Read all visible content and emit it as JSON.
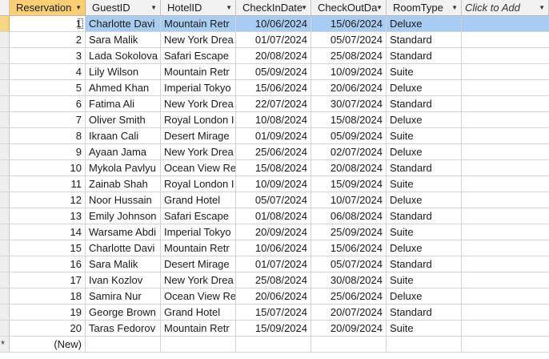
{
  "columns": [
    "Reservation",
    "GuestID",
    "HotelID",
    "CheckInDate",
    "CheckOutDate",
    "RoomType",
    "Click to Add"
  ],
  "column_display": [
    "Reservation",
    "GuestID",
    "HotelID",
    "CheckInDate",
    "CheckOutDa",
    "RoomType",
    "Click to Add"
  ],
  "dropdown_icon": "chevron-down-icon",
  "rows": [
    {
      "id": "1",
      "guest": "Charlotte Davi",
      "hotel": "Mountain Retr",
      "checkin": "10/06/2024",
      "checkout": "15/06/2024",
      "room": "Deluxe"
    },
    {
      "id": "2",
      "guest": "Sara Malik",
      "hotel": "New York Drea",
      "checkin": "01/07/2024",
      "checkout": "05/07/2024",
      "room": "Standard"
    },
    {
      "id": "3",
      "guest": "Lada Sokolova",
      "hotel": "Safari Escape",
      "checkin": "20/08/2024",
      "checkout": "25/08/2024",
      "room": "Standard"
    },
    {
      "id": "4",
      "guest": "Lily Wilson",
      "hotel": "Mountain Retr",
      "checkin": "05/09/2024",
      "checkout": "10/09/2024",
      "room": "Suite"
    },
    {
      "id": "5",
      "guest": "Ahmed Khan",
      "hotel": "Imperial Tokyo",
      "checkin": "15/06/2024",
      "checkout": "20/06/2024",
      "room": "Deluxe"
    },
    {
      "id": "6",
      "guest": "Fatima Ali",
      "hotel": "New York Drea",
      "checkin": "22/07/2024",
      "checkout": "30/07/2024",
      "room": "Standard"
    },
    {
      "id": "7",
      "guest": "Oliver Smith",
      "hotel": "Royal London I",
      "checkin": "10/08/2024",
      "checkout": "15/08/2024",
      "room": "Deluxe"
    },
    {
      "id": "8",
      "guest": "Ikraan Cali",
      "hotel": "Desert Mirage",
      "checkin": "01/09/2024",
      "checkout": "05/09/2024",
      "room": "Suite"
    },
    {
      "id": "9",
      "guest": "Ayaan Jama",
      "hotel": "New York Drea",
      "checkin": "25/06/2024",
      "checkout": "02/07/2024",
      "room": "Deluxe"
    },
    {
      "id": "10",
      "guest": "Mykola Pavlyu",
      "hotel": "Ocean View Re",
      "checkin": "15/08/2024",
      "checkout": "20/08/2024",
      "room": "Standard"
    },
    {
      "id": "11",
      "guest": "Zainab Shah",
      "hotel": "Royal London I",
      "checkin": "10/09/2024",
      "checkout": "15/09/2024",
      "room": "Suite"
    },
    {
      "id": "12",
      "guest": "Noor Hussain",
      "hotel": "Grand Hotel",
      "checkin": "05/07/2024",
      "checkout": "10/07/2024",
      "room": "Deluxe"
    },
    {
      "id": "13",
      "guest": "Emily Johnson",
      "hotel": "Safari Escape",
      "checkin": "01/08/2024",
      "checkout": "06/08/2024",
      "room": "Standard"
    },
    {
      "id": "14",
      "guest": "Warsame Abdi",
      "hotel": "Imperial Tokyo",
      "checkin": "20/09/2024",
      "checkout": "25/09/2024",
      "room": "Suite"
    },
    {
      "id": "15",
      "guest": "Charlotte Davi",
      "hotel": "Mountain Retr",
      "checkin": "10/06/2024",
      "checkout": "15/06/2024",
      "room": "Deluxe"
    },
    {
      "id": "16",
      "guest": "Sara Malik",
      "hotel": "Desert Mirage",
      "checkin": "01/07/2024",
      "checkout": "05/07/2024",
      "room": "Standard"
    },
    {
      "id": "17",
      "guest": "Ivan Kozlov",
      "hotel": "New York Drea",
      "checkin": "25/08/2024",
      "checkout": "30/08/2024",
      "room": "Suite"
    },
    {
      "id": "18",
      "guest": "Samira Nur",
      "hotel": "Ocean View Re",
      "checkin": "20/06/2024",
      "checkout": "25/06/2024",
      "room": "Deluxe"
    },
    {
      "id": "19",
      "guest": "George Brown",
      "hotel": "Grand Hotel",
      "checkin": "15/07/2024",
      "checkout": "20/07/2024",
      "room": "Standard"
    },
    {
      "id": "20",
      "guest": "Taras Fedorov",
      "hotel": "Mountain Retr",
      "checkin": "15/09/2024",
      "checkout": "20/09/2024",
      "room": "Suite"
    }
  ],
  "new_row_label": "(New)",
  "new_row_marker": "*",
  "selected_row_index": 0,
  "colors": {
    "header_active": "#fccf74",
    "selection": "#a8cdf2",
    "gridline": "#d4d4d4"
  }
}
